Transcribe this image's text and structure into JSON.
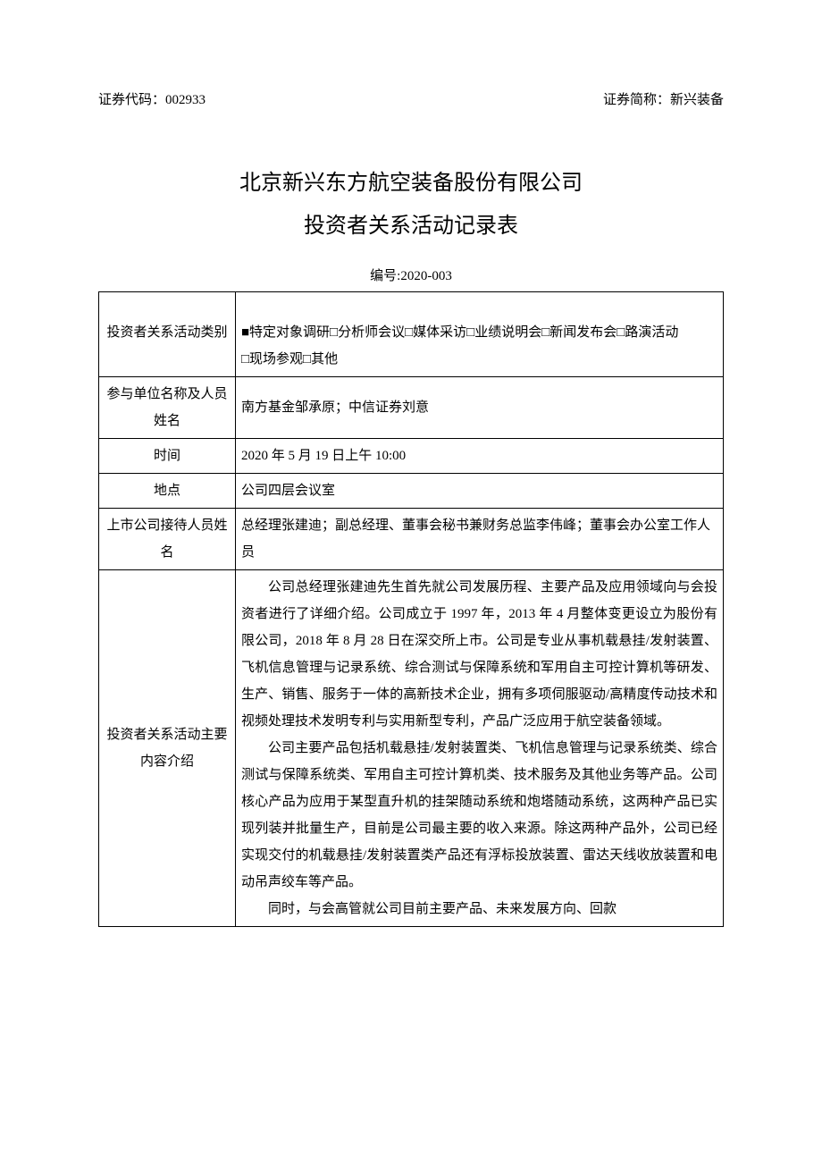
{
  "header": {
    "left": "证券代码：002933",
    "right": "证券简称：新兴装备"
  },
  "title": {
    "line1": "北京新兴东方航空装备股份有限公司",
    "line2": "投资者关系活动记录表"
  },
  "doc_number": "编号:2020-003",
  "table": {
    "rows": [
      {
        "label": "投资者关系活动类别",
        "value": "■特定对象调研□分析师会议□媒体采访□业绩说明会□新闻发布会□路演活动\n□现场参观□其他"
      },
      {
        "label": "参与单位名称及人员姓名",
        "value": "南方基金邹承原；中信证券刘意"
      },
      {
        "label": "时间",
        "value": "2020 年 5 月 19 日上午 10:00"
      },
      {
        "label": "地点",
        "value": "公司四层会议室"
      },
      {
        "label": "上市公司接待人员姓名",
        "value": "总经理张建迪；副总经理、董事会秘书兼财务总监李伟峰；董事会办公室工作人员"
      }
    ],
    "content": {
      "label": "投资者关系活动主要内容介绍",
      "paragraphs": [
        "公司总经理张建迪先生首先就公司发展历程、主要产品及应用领域向与会投资者进行了详细介绍。公司成立于 1997 年，2013 年 4 月整体变更设立为股份有限公司，2018 年 8 月 28 日在深交所上市。公司是专业从事机载悬挂/发射装置、飞机信息管理与记录系统、综合测试与保障系统和军用自主可控计算机等研发、生产、销售、服务于一体的高新技术企业，拥有多项伺服驱动/高精度传动技术和视频处理技术发明专利与实用新型专利，产品广泛应用于航空装备领域。",
        "公司主要产品包括机载悬挂/发射装置类、飞机信息管理与记录系统类、综合测试与保障系统类、军用自主可控计算机类、技术服务及其他业务等产品。公司核心产品为应用于某型直升机的挂架随动系统和炮塔随动系统，这两种产品已实现列装并批量生产，目前是公司最主要的收入来源。除这两种产品外，公司已经实现交付的机载悬挂/发射装置类产品还有浮标投放装置、雷达天线收放装置和电动吊声绞车等产品。",
        "同时，与会高管就公司目前主要产品、未来发展方向、回款"
      ]
    }
  }
}
